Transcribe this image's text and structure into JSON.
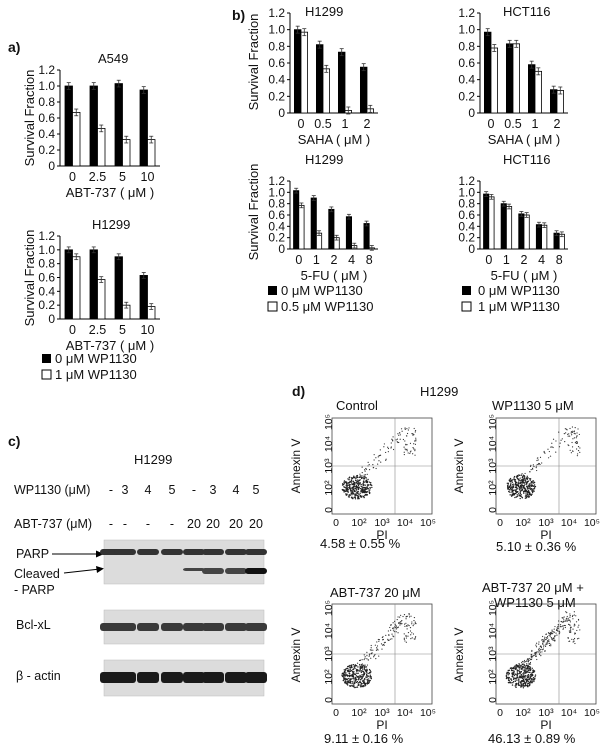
{
  "panel_labels": [
    "a)",
    "b)",
    "c)",
    "d)"
  ],
  "chart_data": [
    {
      "type": "bar",
      "title": "A549",
      "ylabel": "Survival Fraction",
      "xlabel": "ABT-737  ( μM )",
      "categories": [
        "0",
        "2.5",
        "5",
        "10"
      ],
      "ylim": [
        0,
        1.2
      ],
      "yticks": [
        "0",
        "0.2",
        "0.4",
        "0.6",
        "0.8",
        "1.0",
        "1.2"
      ],
      "series": [
        {
          "name": "0 μM WP1130",
          "color": "#000000",
          "values": [
            1.0,
            1.0,
            1.03,
            0.95
          ]
        },
        {
          "name": "1 μM WP1130",
          "color": "#ffffff",
          "values": [
            0.67,
            0.47,
            0.33,
            0.33
          ]
        }
      ]
    },
    {
      "type": "bar",
      "title": "H1299",
      "ylabel": "Survival Fraction",
      "xlabel": "ABT-737  ( μM )",
      "categories": [
        "0",
        "2.5",
        "5",
        "10"
      ],
      "ylim": [
        0,
        1.2
      ],
      "yticks": [
        "0",
        "0.2",
        "0.4",
        "0.6",
        "0.8",
        "1.0",
        "1.2"
      ],
      "series": [
        {
          "name": "0 μM WP1130",
          "color": "#000000",
          "values": [
            1.0,
            1.0,
            0.9,
            0.63
          ]
        },
        {
          "name": "1 μM WP1130",
          "color": "#ffffff",
          "values": [
            0.9,
            0.57,
            0.2,
            0.18
          ]
        }
      ]
    },
    {
      "type": "bar",
      "title": "H1299",
      "ylabel": "Survival Fraction",
      "xlabel": "SAHA  ( μM )",
      "categories": [
        "0",
        "0.5",
        "1",
        "2"
      ],
      "ylim": [
        0,
        1.2
      ],
      "yticks": [
        "0",
        "0.2",
        "0.4",
        "0.6",
        "0.8",
        "1.0",
        "1.2"
      ],
      "series": [
        {
          "name": "0 μM WP1130",
          "color": "#000000",
          "values": [
            1.0,
            0.82,
            0.73,
            0.55
          ]
        },
        {
          "name": "0.5 μM WP1130",
          "color": "#ffffff",
          "values": [
            0.97,
            0.53,
            0.03,
            0.05
          ]
        }
      ]
    },
    {
      "type": "bar",
      "title": "HCT116",
      "ylabel": "",
      "xlabel": "SAHA  ( μM )",
      "categories": [
        "0",
        "0.5",
        "1",
        "2"
      ],
      "ylim": [
        0,
        1.2
      ],
      "yticks": [
        "0",
        "0.2",
        "0.4",
        "0.6",
        "0.8",
        "1.0",
        "1.2"
      ],
      "series": [
        {
          "name": "0 μM WP1130",
          "color": "#000000",
          "values": [
            0.97,
            0.83,
            0.58,
            0.28
          ]
        },
        {
          "name": "1 μM WP1130",
          "color": "#ffffff",
          "values": [
            0.78,
            0.83,
            0.5,
            0.27
          ]
        }
      ]
    },
    {
      "type": "bar",
      "title": "H1299",
      "ylabel": "Survival Fraction",
      "xlabel": "5-FU  ( μM )",
      "categories": [
        "0",
        "1",
        "2",
        "4",
        "8"
      ],
      "ylim": [
        0,
        1.2
      ],
      "yticks": [
        "0",
        "0.2",
        "0.4",
        "0.6",
        "0.8",
        "1.0",
        "1.2"
      ],
      "series": [
        {
          "name": "0 μM WP1130",
          "color": "#000000",
          "values": [
            1.03,
            0.9,
            0.7,
            0.57,
            0.45
          ]
        },
        {
          "name": "0.5 μM WP1130",
          "color": "#ffffff",
          "values": [
            0.77,
            0.28,
            0.2,
            0.06,
            0.02
          ]
        }
      ]
    },
    {
      "type": "bar",
      "title": "HCT116",
      "ylabel": "",
      "xlabel": "5-FU  ( μM )",
      "categories": [
        "0",
        "1",
        "2",
        "4",
        "8"
      ],
      "ylim": [
        0,
        1.2
      ],
      "yticks": [
        "0",
        "0.2",
        "0.4",
        "0.6",
        "0.8",
        "1.0",
        "1.2"
      ],
      "series": [
        {
          "name": "0 μM WP1130",
          "color": "#000000",
          "values": [
            0.97,
            0.8,
            0.62,
            0.43,
            0.28
          ]
        },
        {
          "name": "1 μM WP1130",
          "color": "#ffffff",
          "values": [
            0.92,
            0.75,
            0.6,
            0.42,
            0.26
          ]
        }
      ]
    }
  ],
  "legends": {
    "a": [
      "0 μM WP1130",
      "1 μM WP1130"
    ],
    "b_left": [
      "0 μM WP1130",
      "0.5 μM WP1130"
    ],
    "b_right": [
      "0 μM WP1130",
      "1 μM WP1130"
    ]
  },
  "western": {
    "title": "H1299",
    "row1_label": "WP1130 (μM)",
    "row1_values": [
      "-",
      "3",
      "4",
      "5",
      "-",
      "3",
      "4",
      "5"
    ],
    "row2_label": "ABT-737 (μM)",
    "row2_values": [
      "-",
      "-",
      "-",
      "-",
      "20",
      "20",
      "20",
      "20"
    ],
    "parp": "PARP",
    "cleaved_1": "Cleaved",
    "cleaved_2": "- PARP",
    "bclxl": "Bcl-xL",
    "actin": "β - actin"
  },
  "flow": {
    "title": "H1299",
    "ylabel": "Annexin V",
    "xlabel": "PI",
    "axis_ticks": [
      "0",
      "10²",
      "10³",
      "10⁴",
      "10⁵"
    ],
    "plots": [
      {
        "name": "Control",
        "value": "4.58 ± 0.55 %"
      },
      {
        "name": "WP1130 5 μM",
        "value": "5.10 ± 0.36 %"
      },
      {
        "name": "ABT-737 20 μM",
        "value": "9.11 ± 0.16 %"
      },
      {
        "name_1": "ABT-737 20 μM +",
        "name_2": "WP1130 5 μM",
        "value": "46.13 ± 0.89 %"
      }
    ]
  }
}
